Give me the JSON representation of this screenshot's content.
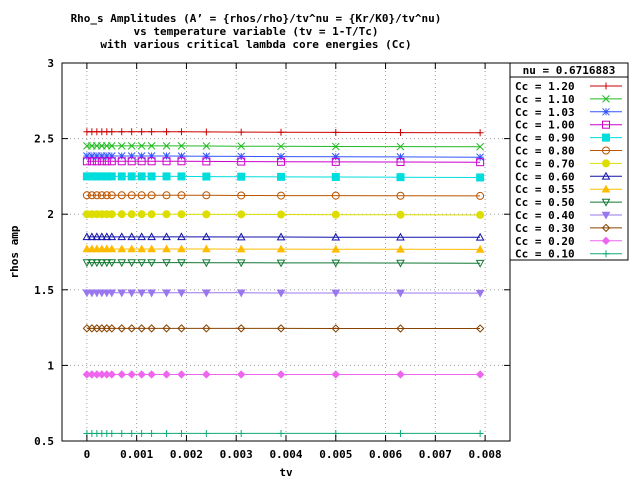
{
  "chart_data": {
    "type": "line",
    "title": [
      "Rho_s Amplitudes (A’ = {rhos/rho}/tv^nu = {Kr/K0}/tv^nu)",
      "vs temperature variable (tv = 1-T/Tc)",
      "with various critical lambda core energies (Cc)"
    ],
    "xlabel": "tv",
    "ylabel": "rhos amp",
    "xlim": [
      -0.0005,
      0.0085
    ],
    "ylim": [
      0.5,
      3.0
    ],
    "x_ticks": [
      0,
      0.001,
      0.002,
      0.003,
      0.004,
      0.005,
      0.006,
      0.007,
      0.008
    ],
    "x_tick_labels": [
      "0",
      "0.001",
      "0.002",
      "0.003",
      "0.004",
      "0.005",
      "0.006",
      "0.007",
      "0.008"
    ],
    "y_ticks": [
      0.5,
      1,
      1.5,
      2,
      2.5,
      3
    ],
    "y_tick_labels": [
      "0.5",
      "1",
      "1.5",
      "2",
      "2.5",
      "3"
    ],
    "grid": true,
    "legend_title": "nu = 0.6716883",
    "legend_placement": "right, outside plot area",
    "x": [
      0.0,
      0.0001,
      0.0002,
      0.0003,
      0.0004,
      0.0005,
      0.0007,
      0.0009,
      0.0011,
      0.0013,
      0.0016,
      0.0019,
      0.0024,
      0.0031,
      0.0039,
      0.005,
      0.0063,
      0.0079
    ],
    "series": [
      {
        "name": "Cc = 1.20",
        "color": "#cc0000",
        "marker": "plus",
        "values": [
          2.545,
          2.545,
          2.545,
          2.545,
          2.545,
          2.545,
          2.545,
          2.545,
          2.545,
          2.545,
          2.545,
          2.545,
          2.544,
          2.543,
          2.542,
          2.541,
          2.54,
          2.539
        ]
      },
      {
        "name": "Cc = 1.10",
        "color": "#22bb22",
        "marker": "x",
        "values": [
          2.452,
          2.452,
          2.452,
          2.452,
          2.452,
          2.452,
          2.452,
          2.452,
          2.452,
          2.452,
          2.452,
          2.452,
          2.451,
          2.45,
          2.449,
          2.448,
          2.447,
          2.446
        ]
      },
      {
        "name": "Cc = 1.03",
        "color": "#3355ff",
        "marker": "star",
        "values": [
          2.385,
          2.385,
          2.385,
          2.385,
          2.385,
          2.385,
          2.385,
          2.385,
          2.385,
          2.385,
          2.385,
          2.384,
          2.383,
          2.382,
          2.381,
          2.38,
          2.379,
          2.377
        ]
      },
      {
        "name": "Cc = 1.00",
        "color": "#cc00cc",
        "marker": "box",
        "values": [
          2.35,
          2.35,
          2.35,
          2.35,
          2.35,
          2.35,
          2.35,
          2.35,
          2.35,
          2.35,
          2.35,
          2.35,
          2.349,
          2.348,
          2.347,
          2.346,
          2.345,
          2.344
        ]
      },
      {
        "name": "Cc = 0.90",
        "color": "#00dddd",
        "marker": "fbox",
        "values": [
          2.25,
          2.25,
          2.25,
          2.25,
          2.25,
          2.25,
          2.25,
          2.25,
          2.25,
          2.25,
          2.25,
          2.25,
          2.249,
          2.248,
          2.247,
          2.246,
          2.245,
          2.243
        ]
      },
      {
        "name": "Cc = 0.80",
        "color": "#bb5500",
        "marker": "circle",
        "values": [
          2.125,
          2.125,
          2.125,
          2.125,
          2.125,
          2.125,
          2.125,
          2.125,
          2.125,
          2.125,
          2.125,
          2.125,
          2.125,
          2.124,
          2.123,
          2.123,
          2.122,
          2.121
        ]
      },
      {
        "name": "Cc = 0.70",
        "color": "#dddd00",
        "marker": "fcircle",
        "values": [
          2.0,
          2.0,
          2.0,
          2.0,
          2.0,
          2.0,
          2.0,
          2.0,
          2.0,
          2.0,
          2.0,
          2.0,
          1.999,
          1.999,
          1.998,
          1.997,
          1.996,
          1.995
        ]
      },
      {
        "name": "Cc = 0.60",
        "color": "#1111aa",
        "marker": "triangle",
        "values": [
          1.85,
          1.85,
          1.85,
          1.85,
          1.85,
          1.85,
          1.85,
          1.85,
          1.85,
          1.85,
          1.85,
          1.85,
          1.85,
          1.849,
          1.849,
          1.848,
          1.848,
          1.847
        ]
      },
      {
        "name": "Cc = 0.55",
        "color": "#ffbb00",
        "marker": "ftriangle",
        "values": [
          1.77,
          1.77,
          1.77,
          1.77,
          1.77,
          1.77,
          1.77,
          1.77,
          1.77,
          1.77,
          1.77,
          1.77,
          1.77,
          1.769,
          1.769,
          1.768,
          1.768,
          1.767
        ]
      },
      {
        "name": "Cc = 0.50",
        "color": "#117733",
        "marker": "itriangle",
        "values": [
          1.68,
          1.68,
          1.68,
          1.68,
          1.68,
          1.68,
          1.68,
          1.68,
          1.68,
          1.68,
          1.68,
          1.68,
          1.679,
          1.679,
          1.678,
          1.678,
          1.677,
          1.676
        ]
      },
      {
        "name": "Cc = 0.40",
        "color": "#9977ee",
        "marker": "fitriangle",
        "values": [
          1.48,
          1.48,
          1.48,
          1.48,
          1.48,
          1.48,
          1.48,
          1.48,
          1.48,
          1.48,
          1.48,
          1.48,
          1.48,
          1.48,
          1.479,
          1.479,
          1.479,
          1.478
        ]
      },
      {
        "name": "Cc = 0.30",
        "color": "#884400",
        "marker": "diamond",
        "values": [
          1.245,
          1.245,
          1.245,
          1.245,
          1.245,
          1.245,
          1.245,
          1.245,
          1.245,
          1.245,
          1.245,
          1.245,
          1.245,
          1.245,
          1.245,
          1.244,
          1.244,
          1.244
        ]
      },
      {
        "name": "Cc = 0.20",
        "color": "#ee66ee",
        "marker": "fdiamond",
        "values": [
          0.94,
          0.94,
          0.94,
          0.94,
          0.94,
          0.94,
          0.94,
          0.94,
          0.94,
          0.94,
          0.94,
          0.94,
          0.94,
          0.94,
          0.94,
          0.94,
          0.94,
          0.94
        ]
      },
      {
        "name": "Cc = 0.10",
        "color": "#11aa77",
        "marker": "plus",
        "values": [
          0.55,
          0.55,
          0.55,
          0.55,
          0.55,
          0.55,
          0.55,
          0.55,
          0.55,
          0.55,
          0.55,
          0.55,
          0.55,
          0.55,
          0.55,
          0.55,
          0.55,
          0.55
        ]
      }
    ]
  }
}
